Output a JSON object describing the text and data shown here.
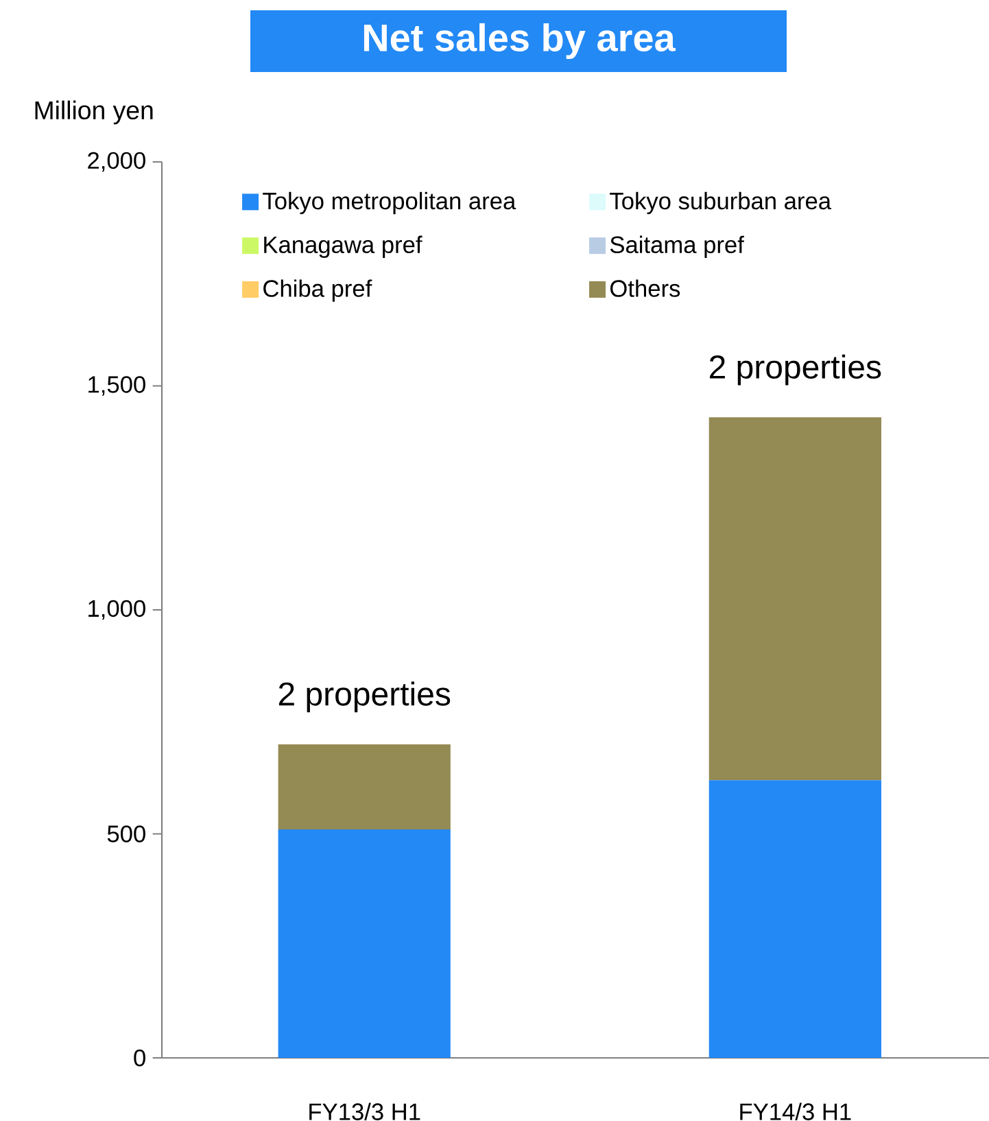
{
  "chart_data": {
    "type": "bar",
    "title": "Net sales by area",
    "ylabel": "Million yen",
    "categories": [
      "FY13/3 H1",
      "FY14/3 H1"
    ],
    "stacked": true,
    "series": [
      {
        "name": "Tokyo metropolitan area",
        "color": "#2389f5",
        "values": [
          510,
          620
        ]
      },
      {
        "name": "Tokyo suburban area",
        "color": "#ddfbfb",
        "values": [
          0,
          0
        ]
      },
      {
        "name": "Kanagawa pref",
        "color": "#ccf866",
        "values": [
          0,
          0
        ]
      },
      {
        "name": "Saitama pref",
        "color": "#b8cce4",
        "values": [
          0,
          0
        ]
      },
      {
        "name": "Chiba pref",
        "color": "#ffcc66",
        "values": [
          0,
          0
        ]
      },
      {
        "name": "Others",
        "color": "#948a54",
        "values": [
          190,
          810
        ]
      }
    ],
    "ylim": [
      0,
      2000
    ],
    "yticks": [
      0,
      {
        "value": 500,
        "label": "500"
      },
      {
        "value": 1000,
        "label": "1,000"
      },
      {
        "value": 1500,
        "label": "1,500"
      },
      {
        "value": 2000,
        "label": "2,000"
      }
    ],
    "annotations": [
      {
        "text": "2 properties",
        "x": "FY13/3 H1",
        "y": 700
      },
      {
        "text": "2 properties",
        "x": "FY14/3 H1",
        "y": 1430
      }
    ],
    "grid": false,
    "legend": "top"
  }
}
